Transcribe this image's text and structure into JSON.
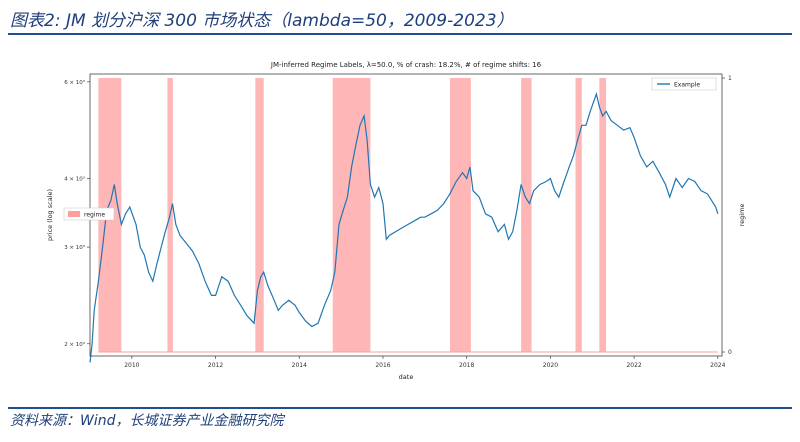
{
  "figure": {
    "caption": "图表2: JM 划分沪深 300 市场状态（lambda=50，2009-2023）",
    "source": "资料来源：Wind，长城证券产业金融研究院"
  },
  "colors": {
    "line": "#1f77b4",
    "regime": "#ff9d9d",
    "caption": "#1f3f7a"
  },
  "chart_data": {
    "type": "line",
    "title": "JM-inferred Regime Labels, λ=50.0, % of crash: 18.2%, # of regime shifts: 16",
    "xlabel": "date",
    "ylabel": "price (log scale)",
    "y2label": "regime",
    "y_scale": "log",
    "xlim": [
      2009.0,
      2024.1
    ],
    "ylim": [
      1900,
      6200
    ],
    "y2lim": [
      0,
      1
    ],
    "x_ticks": [
      2010,
      2012,
      2014,
      2016,
      2018,
      2020,
      2022,
      2024
    ],
    "y_ticks": [
      {
        "value": 2000,
        "label": "2 × 10³"
      },
      {
        "value": 3000,
        "label": "3 × 10³"
      },
      {
        "value": 4000,
        "label": "4 × 10³"
      },
      {
        "value": 6000,
        "label": "6 × 10³"
      }
    ],
    "y2_ticks": [
      {
        "value": 0,
        "label": "0"
      },
      {
        "value": 1,
        "label": "1"
      }
    ],
    "grid": false,
    "legend": [
      {
        "label": "Example",
        "placement": "top-right",
        "kind": "line"
      },
      {
        "label": "regime",
        "placement": "center-left",
        "kind": "patch"
      }
    ],
    "regime_periods": [
      [
        2009.2,
        2009.75
      ],
      [
        2010.85,
        2010.98
      ],
      [
        2012.95,
        2013.15
      ],
      [
        2014.8,
        2015.7
      ],
      [
        2017.6,
        2018.1
      ],
      [
        2019.3,
        2019.55
      ],
      [
        2020.6,
        2020.75
      ],
      [
        2021.17,
        2021.33
      ]
    ],
    "series": [
      {
        "name": "Example",
        "x": [
          2009.0,
          2009.05,
          2009.1,
          2009.2,
          2009.3,
          2009.4,
          2009.5,
          2009.58,
          2009.65,
          2009.75,
          2009.85,
          2009.95,
          2010.1,
          2010.2,
          2010.3,
          2010.4,
          2010.5,
          2010.6,
          2010.7,
          2010.8,
          2010.9,
          2010.97,
          2011.05,
          2011.15,
          2011.3,
          2011.45,
          2011.6,
          2011.75,
          2011.9,
          2012.0,
          2012.15,
          2012.3,
          2012.45,
          2012.6,
          2012.75,
          2012.92,
          2013.0,
          2013.08,
          2013.15,
          2013.25,
          2013.4,
          2013.5,
          2013.6,
          2013.75,
          2013.9,
          2014.0,
          2014.15,
          2014.3,
          2014.45,
          2014.6,
          2014.75,
          2014.85,
          2014.95,
          2015.05,
          2015.15,
          2015.25,
          2015.35,
          2015.45,
          2015.55,
          2015.62,
          2015.7,
          2015.8,
          2015.9,
          2016.0,
          2016.08,
          2016.15,
          2016.3,
          2016.45,
          2016.6,
          2016.75,
          2016.9,
          2017.0,
          2017.15,
          2017.3,
          2017.45,
          2017.6,
          2017.75,
          2017.9,
          2018.0,
          2018.08,
          2018.15,
          2018.3,
          2018.45,
          2018.6,
          2018.75,
          2018.9,
          2019.0,
          2019.1,
          2019.2,
          2019.3,
          2019.4,
          2019.5,
          2019.6,
          2019.75,
          2019.9,
          2020.0,
          2020.1,
          2020.2,
          2020.3,
          2020.45,
          2020.55,
          2020.65,
          2020.75,
          2020.85,
          2020.95,
          2021.1,
          2021.17,
          2021.25,
          2021.33,
          2021.45,
          2021.6,
          2021.75,
          2021.9,
          2022.0,
          2022.15,
          2022.3,
          2022.45,
          2022.6,
          2022.75,
          2022.85,
          2023.0,
          2023.15,
          2023.3,
          2023.45,
          2023.6,
          2023.75,
          2023.85,
          2023.95,
          2024.0
        ],
        "y": [
          1850,
          2000,
          2300,
          2600,
          3000,
          3500,
          3650,
          3900,
          3600,
          3300,
          3450,
          3550,
          3300,
          3000,
          2900,
          2700,
          2600,
          2800,
          3000,
          3200,
          3400,
          3600,
          3300,
          3150,
          3050,
          2950,
          2800,
          2600,
          2450,
          2450,
          2650,
          2600,
          2450,
          2350,
          2250,
          2180,
          2500,
          2650,
          2700,
          2550,
          2400,
          2300,
          2350,
          2400,
          2350,
          2280,
          2200,
          2150,
          2180,
          2350,
          2500,
          2700,
          3300,
          3500,
          3700,
          4200,
          4600,
          5000,
          5200,
          4700,
          3900,
          3700,
          3850,
          3600,
          3100,
          3150,
          3200,
          3250,
          3300,
          3350,
          3400,
          3400,
          3450,
          3500,
          3600,
          3750,
          3950,
          4100,
          4000,
          4200,
          3800,
          3700,
          3450,
          3400,
          3200,
          3300,
          3100,
          3200,
          3500,
          3900,
          3700,
          3600,
          3800,
          3900,
          3950,
          4000,
          3800,
          3700,
          3900,
          4200,
          4400,
          4700,
          5000,
          5000,
          5300,
          5700,
          5400,
          5200,
          5300,
          5100,
          5000,
          4900,
          4950,
          4750,
          4400,
          4200,
          4300,
          4100,
          3900,
          3700,
          4000,
          3850,
          4000,
          3950,
          3800,
          3750,
          3650,
          3550,
          3450
        ]
      }
    ]
  }
}
